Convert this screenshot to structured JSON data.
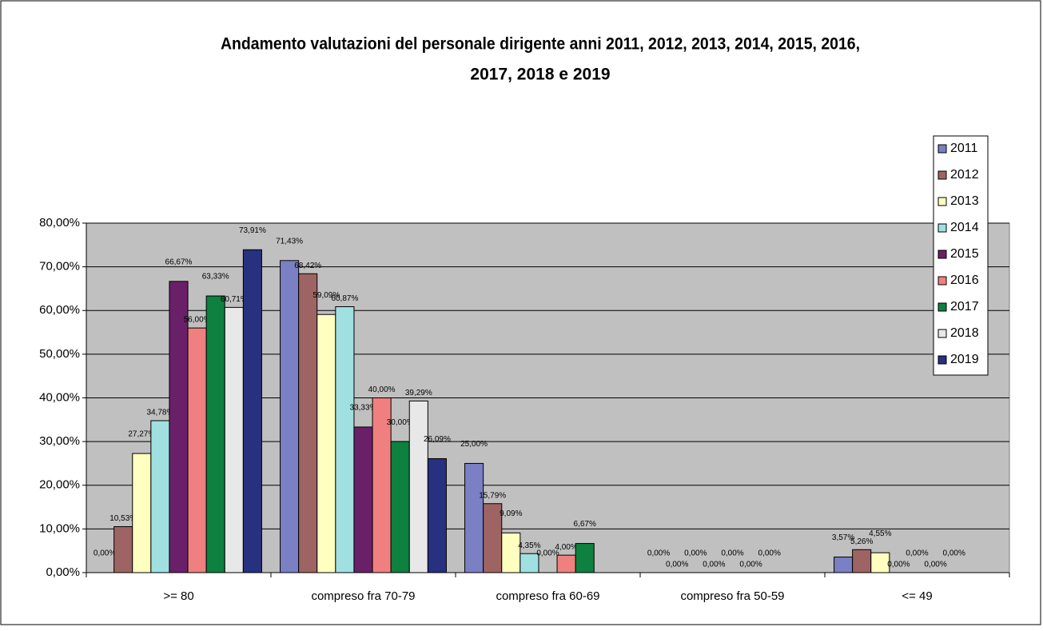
{
  "chart_data": {
    "type": "bar",
    "title": [
      "Andamento valutazioni del personale dirigente anni 2011, 2012, 2013, 2014, 2015, 2016,",
      "2017, 2018 e 2019"
    ],
    "categories": [
      ">= 80",
      "compreso fra 70-79",
      "compreso fra 60-69",
      "compreso fra 50-59",
      "<= 49"
    ],
    "series": [
      {
        "name": "2011",
        "color": "#7b7fc4",
        "values": [
          0.0,
          71.43,
          25.0,
          0.0,
          3.57
        ],
        "value_labels": [
          "0,00%",
          "71,43%",
          "25,00%",
          "0,00%",
          "3,57%"
        ]
      },
      {
        "name": "2012",
        "color": "#9e6464",
        "values": [
          10.53,
          68.42,
          15.79,
          0.0,
          5.26
        ],
        "value_labels": [
          "10,53%",
          "68,42%",
          "15,79%",
          "0,00%",
          "5,26%"
        ]
      },
      {
        "name": "2013",
        "color": "#ffffc0",
        "values": [
          27.27,
          59.09,
          9.09,
          0.0,
          4.55
        ],
        "value_labels": [
          "27,27%",
          "59,09%",
          "9,09%",
          "0,00%",
          "4,55%"
        ]
      },
      {
        "name": "2014",
        "color": "#a0e0e0",
        "values": [
          34.78,
          60.87,
          4.35,
          0.0,
          0.0
        ],
        "value_labels": [
          "34,78%",
          "60,87%",
          "4,35%",
          "0,00%",
          "0,00%"
        ]
      },
      {
        "name": "2015",
        "color": "#6a2068",
        "values": [
          66.67,
          33.33,
          0.0,
          0.0,
          0.0
        ],
        "value_labels": [
          "66,67%",
          "33,33%",
          "0,00%",
          "0,00%",
          "0,00%"
        ]
      },
      {
        "name": "2016",
        "color": "#f08080",
        "values": [
          56.0,
          40.0,
          4.0,
          0.0,
          0.0
        ],
        "value_labels": [
          "56,00%",
          "40,00%",
          "4,00%",
          "0,00%",
          "0,00%"
        ]
      },
      {
        "name": "2017",
        "color": "#0e8040",
        "values": [
          63.33,
          30.0,
          6.67,
          0.0,
          0.0
        ],
        "value_labels": [
          "63,33%",
          "30,00%",
          "6,67%",
          "0,00%",
          "0,00%"
        ]
      },
      {
        "name": "2018",
        "color": "#e8e8e8",
        "values": [
          60.71,
          39.29,
          null,
          null,
          null
        ],
        "value_labels": [
          "60,71%",
          "39,29%",
          null,
          null,
          null
        ]
      },
      {
        "name": "2019",
        "color": "#283080",
        "values": [
          73.91,
          26.09,
          null,
          null,
          null
        ],
        "value_labels": [
          "73,91%",
          "26,09%",
          null,
          null,
          null
        ]
      }
    ],
    "ylim": [
      0,
      80
    ],
    "yticks": [
      {
        "value": 0,
        "label": "0,00%"
      },
      {
        "value": 10,
        "label": "10,00%"
      },
      {
        "value": 20,
        "label": "20,00%"
      },
      {
        "value": 30,
        "label": "30,00%"
      },
      {
        "value": 40,
        "label": "40,00%"
      },
      {
        "value": 50,
        "label": "50,00%"
      },
      {
        "value": 60,
        "label": "60,00%"
      },
      {
        "value": 70,
        "label": "70,00%"
      },
      {
        "value": 80,
        "label": "80,00%"
      }
    ],
    "grid": true,
    "legend": "right"
  }
}
